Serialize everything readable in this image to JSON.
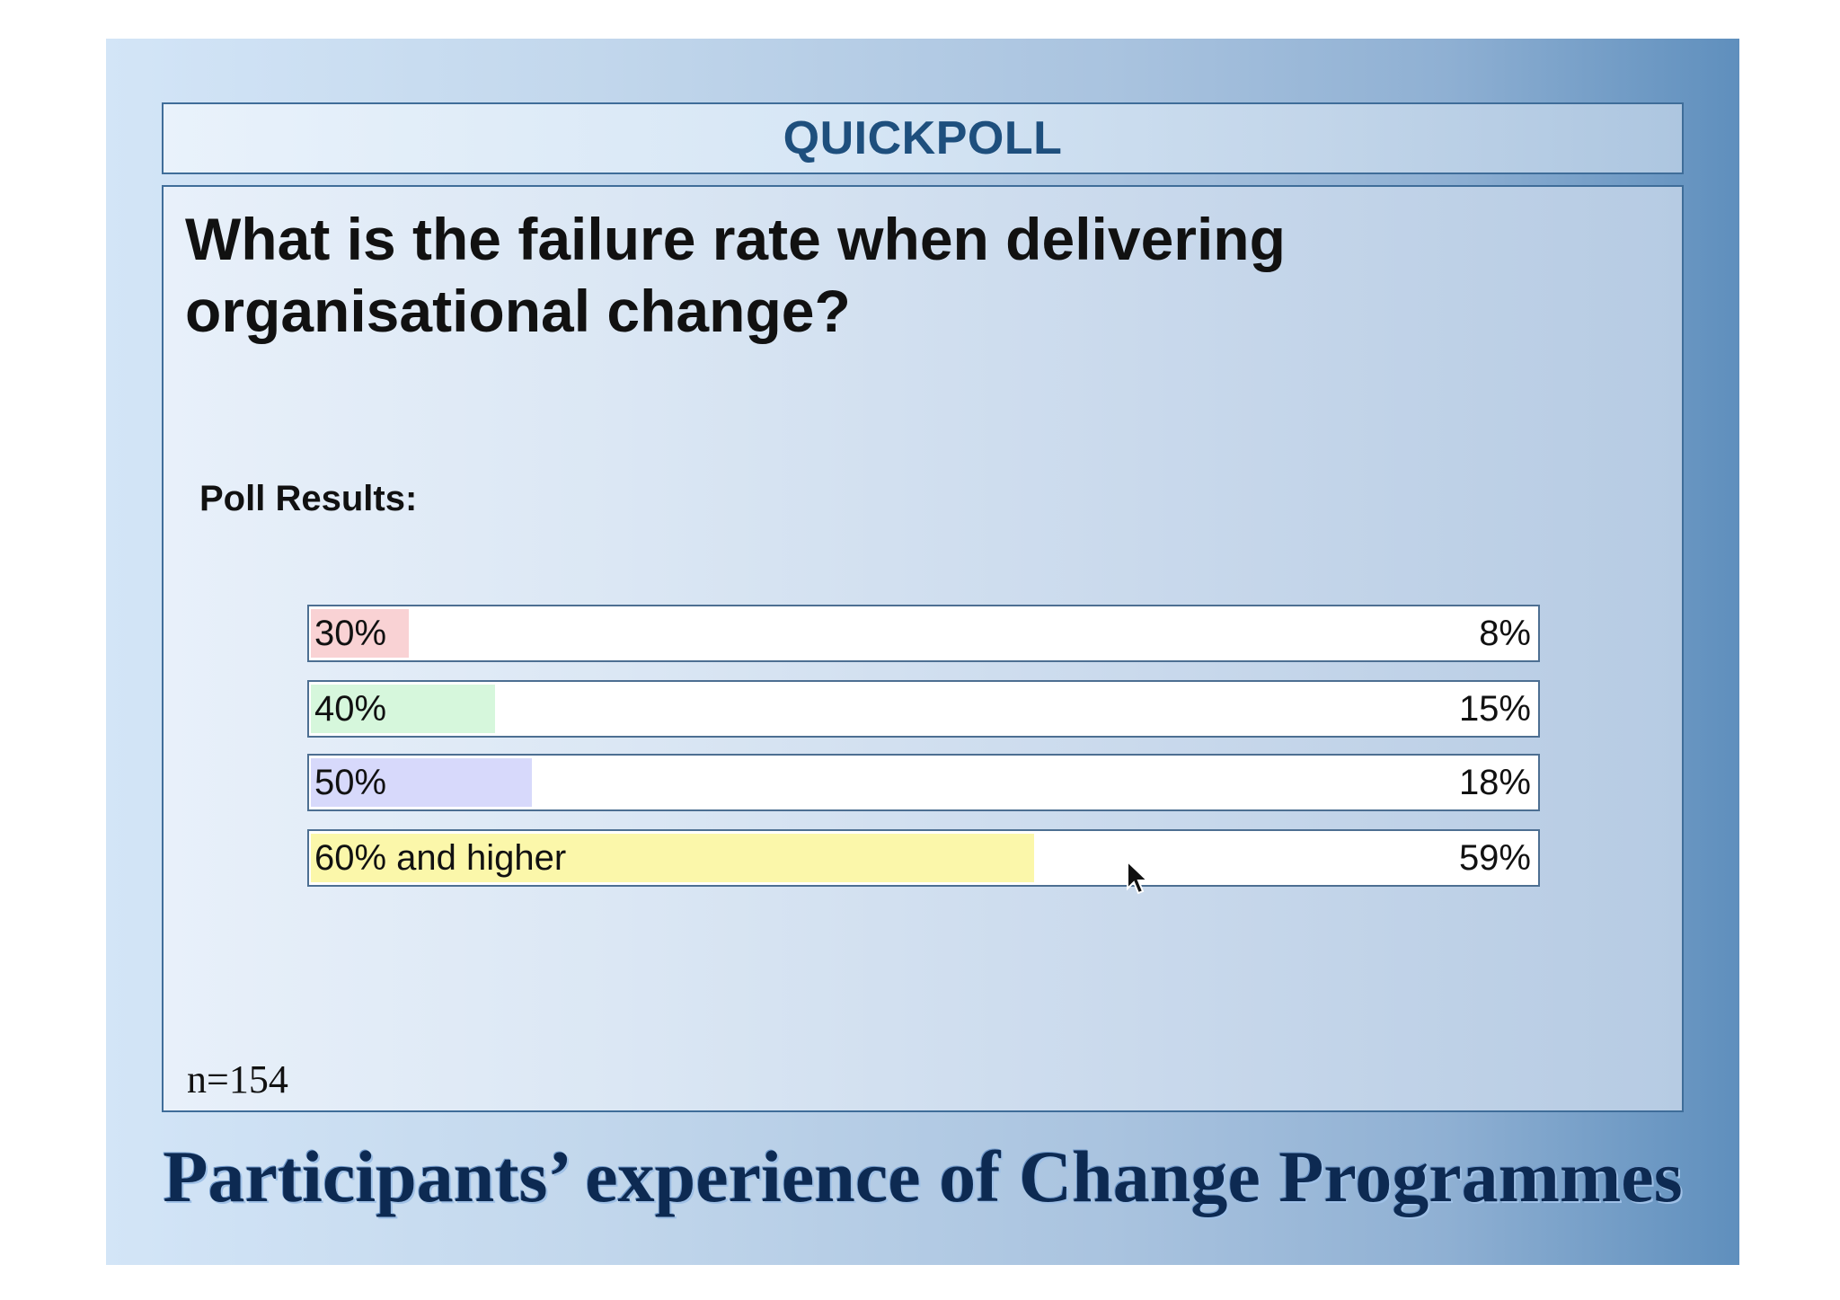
{
  "header": {
    "title": "QUICKPOLL"
  },
  "question": {
    "line1": "What is the failure rate when delivering",
    "line2": "organisational change?"
  },
  "results_label": "Poll Results:",
  "sample_size": "n=154",
  "footer_title": "Participants’ experience of Change Programmes",
  "colors": {
    "bar_30": "#f9d2d4",
    "bar_40": "#d6f7dc",
    "bar_50": "#d7d9fb",
    "bar_60": "#fbf7aa",
    "header_text": "#1e4f7d",
    "footer_text": "#0d2a52"
  },
  "chart_data": {
    "type": "bar",
    "orientation": "horizontal",
    "categories": [
      "30%",
      "40%",
      "50%",
      "60% and higher"
    ],
    "values": [
      8,
      15,
      18,
      59
    ],
    "value_labels": [
      "8%",
      "15%",
      "18%",
      "59%"
    ],
    "unit": "%",
    "title": "",
    "xlabel": "",
    "ylabel": "",
    "xlim": [
      0,
      100
    ],
    "grid": false,
    "legend": "none"
  }
}
